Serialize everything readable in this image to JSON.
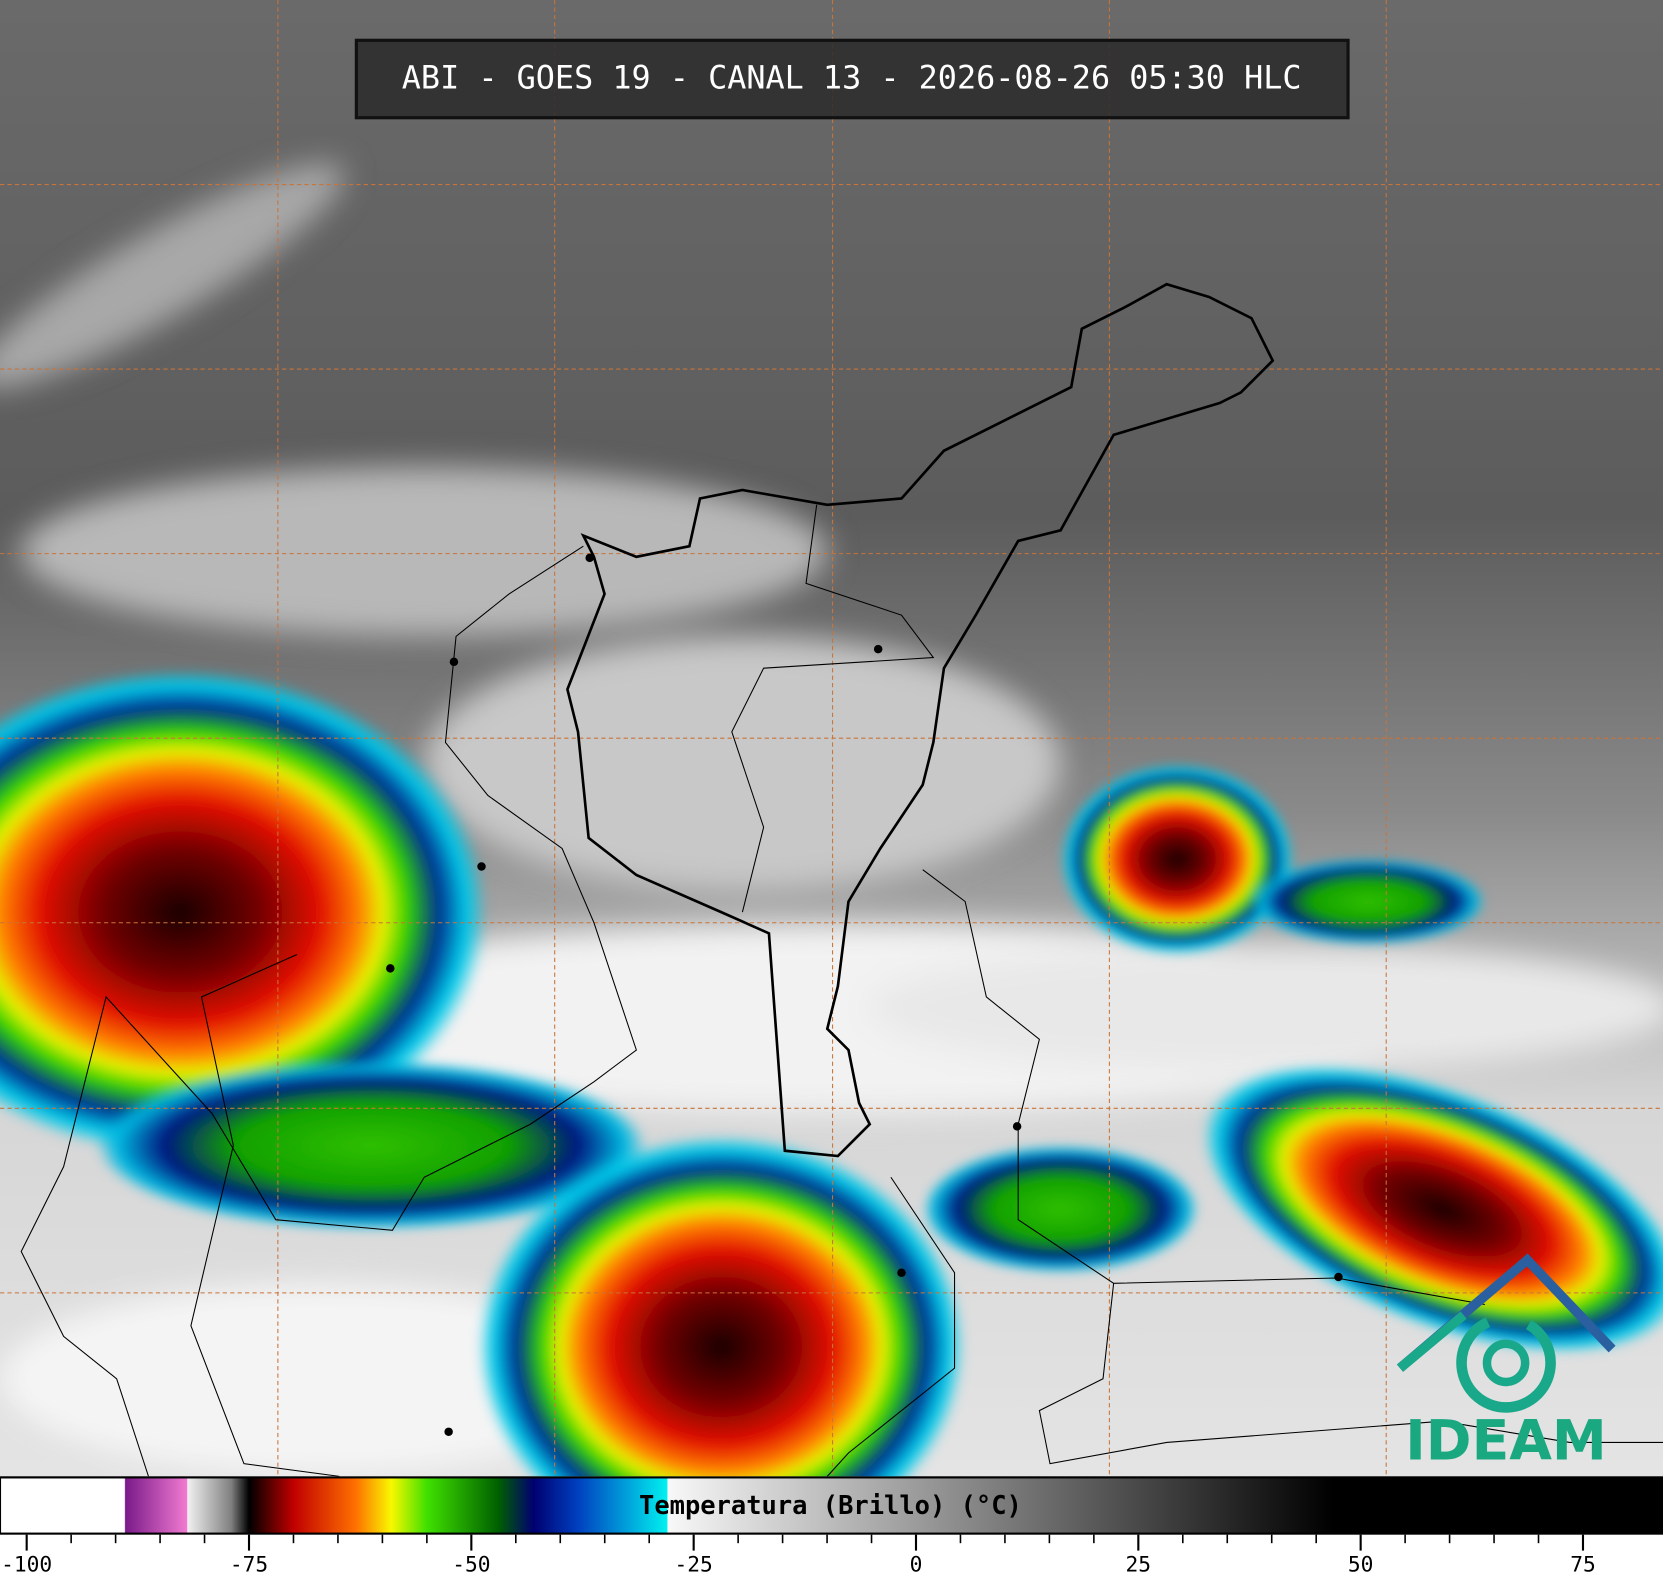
{
  "header": {
    "title": "ABI - GOES 19 - CANAL 13 - 2026-08-26 05:30 HLC"
  },
  "colorbar": {
    "label": "Temperatura (Brillo) (°C)",
    "range": [
      -103,
      84
    ],
    "ticks": [
      -100,
      -75,
      -50,
      -25,
      0,
      25,
      50,
      75
    ],
    "stops": [
      {
        "value": -89,
        "color": "#ffffff"
      },
      {
        "value": -88.9,
        "color": "#7a1a8a"
      },
      {
        "value": -82,
        "color": "#f07ad0"
      },
      {
        "value": -81.9,
        "color": "#f0f0f0"
      },
      {
        "value": -77,
        "color": "#808080"
      },
      {
        "value": -75,
        "color": "#000000"
      },
      {
        "value": -70,
        "color": "#c00000"
      },
      {
        "value": -63,
        "color": "#ff7000"
      },
      {
        "value": -59,
        "color": "#f8f800"
      },
      {
        "value": -55,
        "color": "#40e000"
      },
      {
        "value": -47,
        "color": "#006000"
      },
      {
        "value": -43,
        "color": "#000070"
      },
      {
        "value": -38,
        "color": "#0040c0"
      },
      {
        "value": -28,
        "color": "#00f0f0"
      },
      {
        "value": -27.9,
        "color": "#f8f8f8"
      },
      {
        "value": 47,
        "color": "#000000"
      },
      {
        "value": 84,
        "color": "#000000"
      }
    ]
  },
  "logo": {
    "text": "IDEAM"
  }
}
